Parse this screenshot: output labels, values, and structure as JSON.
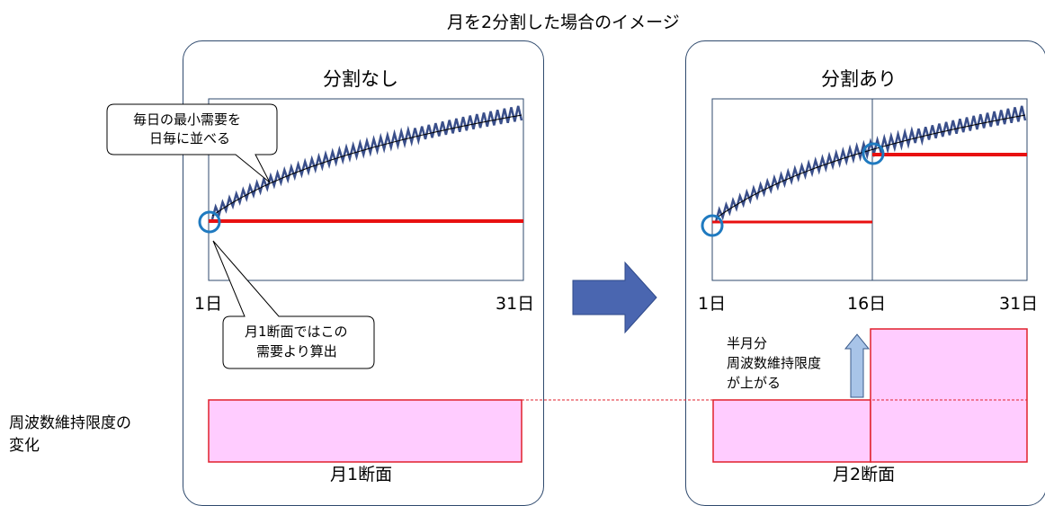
{
  "title": "月を2分割した場合のイメージ",
  "left_panel": {
    "title": "分割なし",
    "callout_top": [
      "毎日の最小需要を",
      "日毎に並べる"
    ],
    "callout_bottom": [
      "月1断面ではこの",
      "需要より算出"
    ],
    "x_start": "1日",
    "x_end": "31日",
    "bar_label": "月1断面"
  },
  "right_panel": {
    "title": "分割あり",
    "x_start": "1日",
    "x_mid": "16日",
    "x_end": "31日",
    "annotation": [
      "半月分",
      "周波数維持限度",
      "が上がる"
    ],
    "bar_label": "月2断面"
  },
  "side_label": [
    "周波数維持限度の",
    "変化"
  ],
  "colors": {
    "panel_border": "#2f4a6e",
    "series_line": "#3a4f8a",
    "min_line": "#e81010",
    "bar_fill": "#ffccff",
    "bar_border": "#e0202c",
    "circle": "#1f7ac0",
    "arrow_fill": "#4a66b0",
    "small_arrow_fill": "#a8c4e8"
  }
}
